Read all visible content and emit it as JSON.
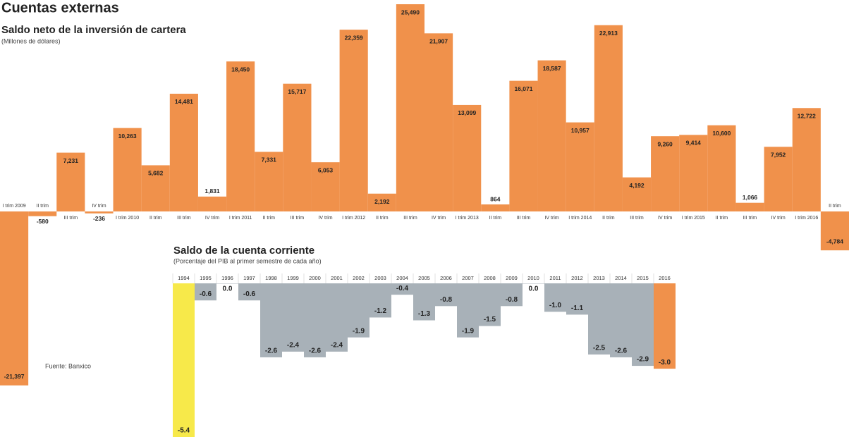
{
  "chart_data": [
    {
      "type": "bar",
      "title": "Cuentas externas",
      "subtitle": "Saldo neto de la inversión de cartera",
      "unit_note": "(Millones de dólares)",
      "source": "Fuente: Banxico",
      "color": "#f0914b",
      "categories": [
        "I trim 2009",
        "II trim",
        "III trim",
        "IV trim",
        "I trim 2010",
        "II trim",
        "III trim",
        "IV trim",
        "I trim 2011",
        "II trim",
        "III trim",
        "IV trim",
        "I trim 2012",
        "II trim",
        "III trim",
        "IV trim",
        "I trim 2013",
        "II trim",
        "III trim",
        "IV trim",
        "I trim 2014",
        "II trim",
        "III trim",
        "IV trim",
        "I trim 2015",
        "II trim",
        "III trim",
        "IV trim",
        "I trim 2016",
        "II trim"
      ],
      "values": [
        -21397,
        -580,
        7231,
        -236,
        10263,
        5682,
        14481,
        1831,
        18450,
        7331,
        15717,
        6053,
        22359,
        2192,
        25490,
        21907,
        13099,
        864,
        16071,
        18587,
        10957,
        22913,
        4192,
        9260,
        9414,
        10600,
        1066,
        7952,
        12722,
        -4784
      ],
      "value_labels": [
        "-21,397",
        "-580",
        "7,231",
        "-236",
        "10,263",
        "5,682",
        "14,481",
        "1,831",
        "18,450",
        "7,331",
        "15,717",
        "6,053",
        "22,359",
        "2,192",
        "25,490",
        "21,907",
        "13,099",
        "864",
        "16,071",
        "18,587",
        "10,957",
        "22,913",
        "4,192",
        "9,260",
        "9,414",
        "10,600",
        "1,066",
        "7,952",
        "12,722",
        "-4,784"
      ]
    },
    {
      "type": "bar",
      "title": "Saldo de la cuenta corriente",
      "subtitle": "(Porcentaje del PIB al primer semestre de cada año)",
      "color": "#a8b1b8",
      "categories": [
        "1994",
        "1995",
        "1996",
        "1997",
        "1998",
        "1999",
        "2000",
        "2001",
        "2002",
        "2003",
        "2004",
        "2005",
        "2006",
        "2007",
        "2008",
        "2009",
        "2010",
        "2011",
        "2012",
        "2013",
        "2014",
        "2015",
        "2016"
      ],
      "values": [
        -5.4,
        -0.6,
        0.0,
        -0.6,
        -2.6,
        -2.4,
        -2.6,
        -2.4,
        -1.9,
        -1.2,
        -0.4,
        -1.3,
        -0.8,
        -1.9,
        -1.5,
        -0.8,
        0.0,
        -1.0,
        -1.1,
        -2.5,
        -2.6,
        -2.9,
        -3.0
      ],
      "value_labels": [
        "-5.4",
        "-0.6",
        "0.0",
        "-0.6",
        "-2.6",
        "-2.4",
        "-2.6",
        "-2.4",
        "-1.9",
        "-1.2",
        "-0.4",
        "-1.3",
        "-0.8",
        "-1.9",
        "-1.5",
        "-0.8",
        "0.0",
        "-1.0",
        "-1.1",
        "-2.5",
        "-2.6",
        "-2.9",
        "-3.0"
      ],
      "highlight_colors": {
        "0": "#f7e94a",
        "22": "#f0914b"
      }
    }
  ]
}
